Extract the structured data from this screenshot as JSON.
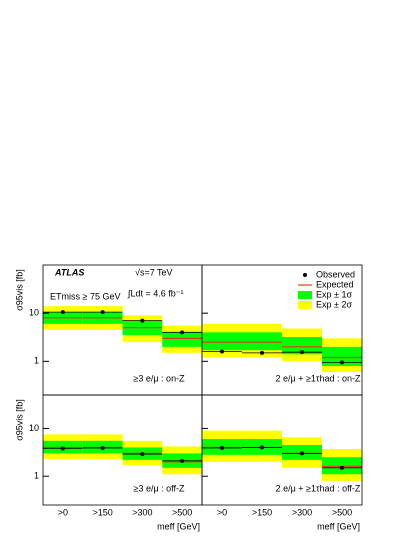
{
  "annotations": {
    "experiment": "ATLAS",
    "energy": "√s=7 TeV",
    "lumi": "∫Ldt = 4.6 fb⁻¹",
    "met_cut": "ETmiss ≥ 75 GeV"
  },
  "legend": [
    {
      "name": "Observed",
      "color": "#000000"
    },
    {
      "name": "Expected",
      "color": "#e03c1e"
    },
    {
      "name": "Exp ± 1σ",
      "color": "#00ff00"
    },
    {
      "name": "Exp ± 2σ",
      "color": "#ffff00"
    }
  ],
  "chart_data": [
    {
      "type": "limit",
      "label": "≥3 e/μ : on-Z",
      "ylabel": "σ95vis [fb]",
      "log_y": true,
      "ylim": [
        0.2,
        100
      ],
      "yticks": [
        1,
        10
      ],
      "observed": [
        10.5,
        10.5,
        7,
        4
      ],
      "expected": [
        8,
        8,
        5,
        3
      ],
      "band_1sigma": {
        "low": [
          6,
          6,
          3.5,
          2
        ],
        "high": [
          10.5,
          10.5,
          7,
          4
        ]
      },
      "band_2sigma": {
        "low": [
          4.5,
          4.5,
          2.5,
          1.5
        ],
        "high": [
          14,
          14,
          9,
          5.5
        ]
      }
    },
    {
      "type": "limit",
      "label": "2 e/μ + ≥1τhad : on-Z",
      "log_y": true,
      "ylim": [
        0.2,
        100
      ],
      "yticks": [
        1,
        10
      ],
      "observed": [
        1.6,
        1.5,
        1.55,
        0.95
      ],
      "expected": [
        2.5,
        2.5,
        2,
        1.2
      ],
      "band_1sigma": {
        "low": [
          1.7,
          1.7,
          1.4,
          0.8
        ],
        "high": [
          4,
          4,
          3.2,
          2
        ]
      },
      "band_2sigma": {
        "low": [
          1.2,
          1.2,
          1,
          0.6
        ],
        "high": [
          6,
          6,
          4.8,
          3
        ]
      }
    },
    {
      "type": "limit",
      "label": "≥3 e/μ : off-Z",
      "ylabel": "σ95vis [fb]",
      "xlabel": "meff [GeV]",
      "categories": [
        ">0",
        ">150",
        ">300",
        ">500"
      ],
      "log_y": true,
      "ylim": [
        0.25,
        50
      ],
      "yticks": [
        1,
        10
      ],
      "observed": [
        3.8,
        3.9,
        2.9,
        2.1
      ],
      "expected": [
        4,
        4,
        3,
        2
      ],
      "band_1sigma": {
        "low": [
          3,
          3,
          2.2,
          1.5
        ],
        "high": [
          5.5,
          5.5,
          4,
          3
        ]
      },
      "band_2sigma": {
        "low": [
          2.3,
          2.3,
          1.7,
          1.1
        ],
        "high": [
          7.5,
          7.5,
          5.5,
          4.2
        ]
      }
    },
    {
      "type": "limit",
      "label": "2 e/μ + ≥1τhad : off-Z",
      "xlabel": "meff [GeV]",
      "categories": [
        ">0",
        ">150",
        ">300",
        ">500"
      ],
      "log_y": true,
      "ylim": [
        0.25,
        50
      ],
      "yticks": [
        1,
        10
      ],
      "observed": [
        3.9,
        4,
        3,
        1.5
      ],
      "expected": [
        4,
        4,
        3,
        1.6
      ],
      "band_1sigma": {
        "low": [
          2.8,
          2.8,
          2.2,
          1.1
        ],
        "high": [
          6,
          6,
          4.5,
          2.5
        ]
      },
      "band_2sigma": {
        "low": [
          2,
          2,
          1.5,
          0.8
        ],
        "high": [
          9,
          9,
          6.5,
          3.7
        ]
      }
    }
  ]
}
